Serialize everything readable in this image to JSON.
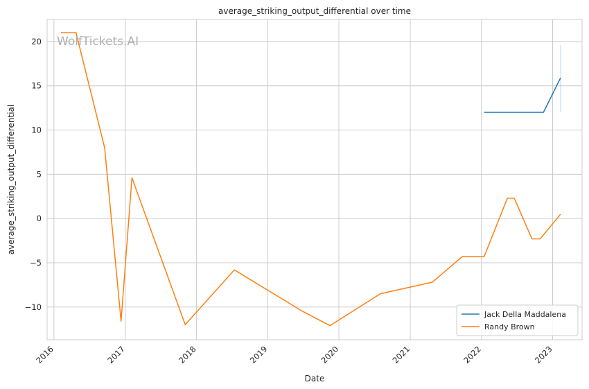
{
  "watermark": "WolfTickets.AI",
  "chart_data": {
    "type": "line",
    "title": "average_striking_output_differential over time",
    "xlabel": "Date",
    "ylabel": "average_striking_output_differential",
    "x_ticks": [
      "2016",
      "2017",
      "2018",
      "2019",
      "2020",
      "2021",
      "2022",
      "2023"
    ],
    "y_ticks": [
      -10,
      -5,
      0,
      5,
      10,
      15,
      20
    ],
    "xlim": [
      "2015-11-27",
      "2023-06-01"
    ],
    "ylim": [
      -13.7,
      22.5
    ],
    "grid": true,
    "legend_position": "lower-right",
    "series": [
      {
        "name": "Jack Della Maddalena",
        "color": "#1f77b4",
        "points": [
          [
            "2022-01-15",
            12.0
          ],
          [
            "2022-11-15",
            12.0
          ],
          [
            "2023-02-11",
            15.9
          ]
        ],
        "error_band": {
          "x": "2023-02-11",
          "low": 12.0,
          "high": 19.6
        }
      },
      {
        "name": "Randy Brown",
        "color": "#ff7f0e",
        "points": [
          [
            "2016-02-06",
            21.0
          ],
          [
            "2016-04-23",
            21.0
          ],
          [
            "2016-09-17",
            8.0
          ],
          [
            "2016-12-10",
            -11.6
          ],
          [
            "2017-02-04",
            4.6
          ],
          [
            "2017-11-04",
            -12.0
          ],
          [
            "2018-07-14",
            -5.8
          ],
          [
            "2019-06-22",
            -10.4
          ],
          [
            "2019-11-16",
            -12.1
          ],
          [
            "2020-08-01",
            -8.5
          ],
          [
            "2021-04-24",
            -7.2
          ],
          [
            "2021-09-25",
            -4.3
          ],
          [
            "2022-01-15",
            -4.3
          ],
          [
            "2022-05-14",
            2.3
          ],
          [
            "2022-06-18",
            2.3
          ],
          [
            "2022-09-17",
            -2.3
          ],
          [
            "2022-10-29",
            -2.3
          ],
          [
            "2023-02-11",
            0.5
          ]
        ]
      }
    ]
  }
}
